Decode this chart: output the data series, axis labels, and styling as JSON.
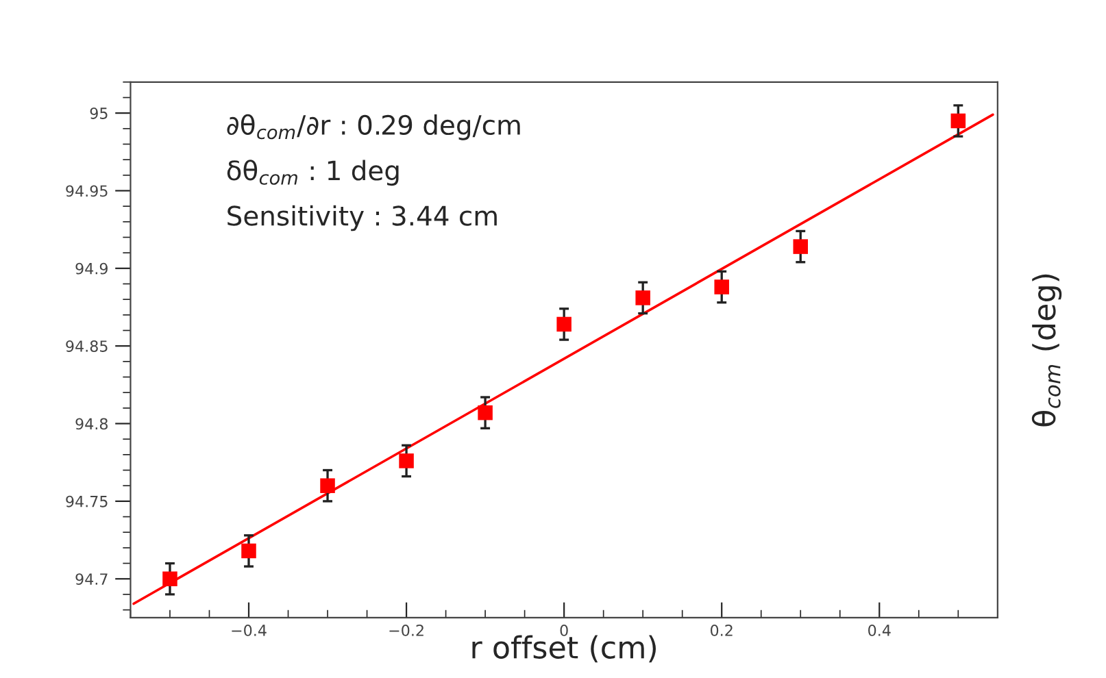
{
  "chart_data": {
    "type": "scatter",
    "xlabel": "r offset (cm)",
    "ylabel": "θ$_{com}$ (deg)",
    "annotations": [
      "∂θ$_{com}$/∂r : 0.29 deg/cm",
      "δθ$_{com}$ : 1 deg",
      "Sensitivity : 3.44 cm"
    ],
    "x": [
      -0.5,
      -0.4,
      -0.3,
      -0.2,
      -0.1,
      0,
      0.1,
      0.2,
      0.3,
      0.5
    ],
    "series": [
      {
        "marker": "square",
        "color": "#ff0000",
        "values": [
          94.7,
          94.718,
          94.76,
          94.776,
          94.807,
          94.864,
          94.881,
          94.888,
          94.914,
          94.995
        ],
        "errors": [
          0.01,
          0.01,
          0.01,
          0.01,
          0.01,
          0.01,
          0.01,
          0.01,
          0.01,
          0.01
        ]
      },
      {
        "type": "line",
        "marker": "none",
        "color": "#ff0000",
        "x": [
          -0.546,
          0.544
        ],
        "values": [
          94.684,
          94.999
        ]
      }
    ],
    "xlim": [
      -0.55,
      0.55
    ],
    "ylim": [
      94.675,
      95.02
    ],
    "xticks": [
      {
        "value": -0.4,
        "label": "−0.4"
      },
      {
        "value": -0.2,
        "label": "−0.2"
      },
      0,
      0.2,
      0.4
    ],
    "yticks": [
      94.7,
      94.75,
      94.8,
      94.85,
      94.9,
      94.95,
      95
    ],
    "grid": false,
    "legend": false
  }
}
